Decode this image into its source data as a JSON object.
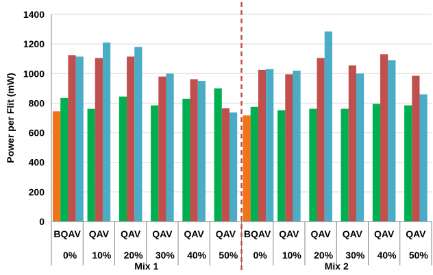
{
  "chart_data": {
    "type": "bar",
    "ylabel": "Power per Flit (mW)",
    "ylim": [
      0,
      1400
    ],
    "yticks": [
      0,
      200,
      400,
      600,
      800,
      1000,
      1200,
      1400
    ],
    "grid": true,
    "separator": {
      "style": "dashed",
      "color": "#c0504d"
    },
    "colors": {
      "B": "#f0741a",
      "Q": "#00b050",
      "A": "#c0504d",
      "V": "#4bacc6",
      "grid": "#d9d9d9",
      "axis": "#808080"
    },
    "groups": [
      {
        "label": "Mix 1",
        "clusters": [
          {
            "pct": "0%",
            "label": "BQAV",
            "series": [
              "B",
              "Q",
              "A",
              "V"
            ],
            "values": [
              745,
              835,
              1125,
              1115
            ]
          },
          {
            "pct": "10%",
            "label": "QAV",
            "series": [
              "Q",
              "A",
              "V"
            ],
            "values": [
              762,
              1105,
              1210
            ]
          },
          {
            "pct": "20%",
            "label": "QAV",
            "series": [
              "Q",
              "A",
              "V"
            ],
            "values": [
              845,
              1115,
              1180
            ]
          },
          {
            "pct": "30%",
            "label": "QAV",
            "series": [
              "Q",
              "A",
              "V"
            ],
            "values": [
              785,
              980,
              1000
            ]
          },
          {
            "pct": "40%",
            "label": "QAV",
            "series": [
              "Q",
              "A",
              "V"
            ],
            "values": [
              830,
              962,
              950
            ]
          },
          {
            "pct": "50%",
            "label": "QAV",
            "series": [
              "Q",
              "A",
              "V"
            ],
            "values": [
              900,
              765,
              737
            ]
          }
        ]
      },
      {
        "label": "Mix 2",
        "clusters": [
          {
            "pct": "0%",
            "label": "BQAV",
            "series": [
              "B",
              "Q",
              "A",
              "V"
            ],
            "values": [
              717,
              775,
              1025,
              1030
            ]
          },
          {
            "pct": "10%",
            "label": "QAV",
            "series": [
              "Q",
              "A",
              "V"
            ],
            "values": [
              752,
              995,
              1020
            ]
          },
          {
            "pct": "20%",
            "label": "QAV",
            "series": [
              "Q",
              "A",
              "V"
            ],
            "values": [
              762,
              1105,
              1285
            ]
          },
          {
            "pct": "30%",
            "label": "QAV",
            "series": [
              "Q",
              "A",
              "V"
            ],
            "values": [
              762,
              1055,
              1000
            ]
          },
          {
            "pct": "40%",
            "label": "QAV",
            "series": [
              "Q",
              "A",
              "V"
            ],
            "values": [
              795,
              1130,
              1090
            ]
          },
          {
            "pct": "50%",
            "label": "QAV",
            "series": [
              "Q",
              "A",
              "V"
            ],
            "values": [
              785,
              985,
              860
            ]
          }
        ]
      }
    ]
  }
}
